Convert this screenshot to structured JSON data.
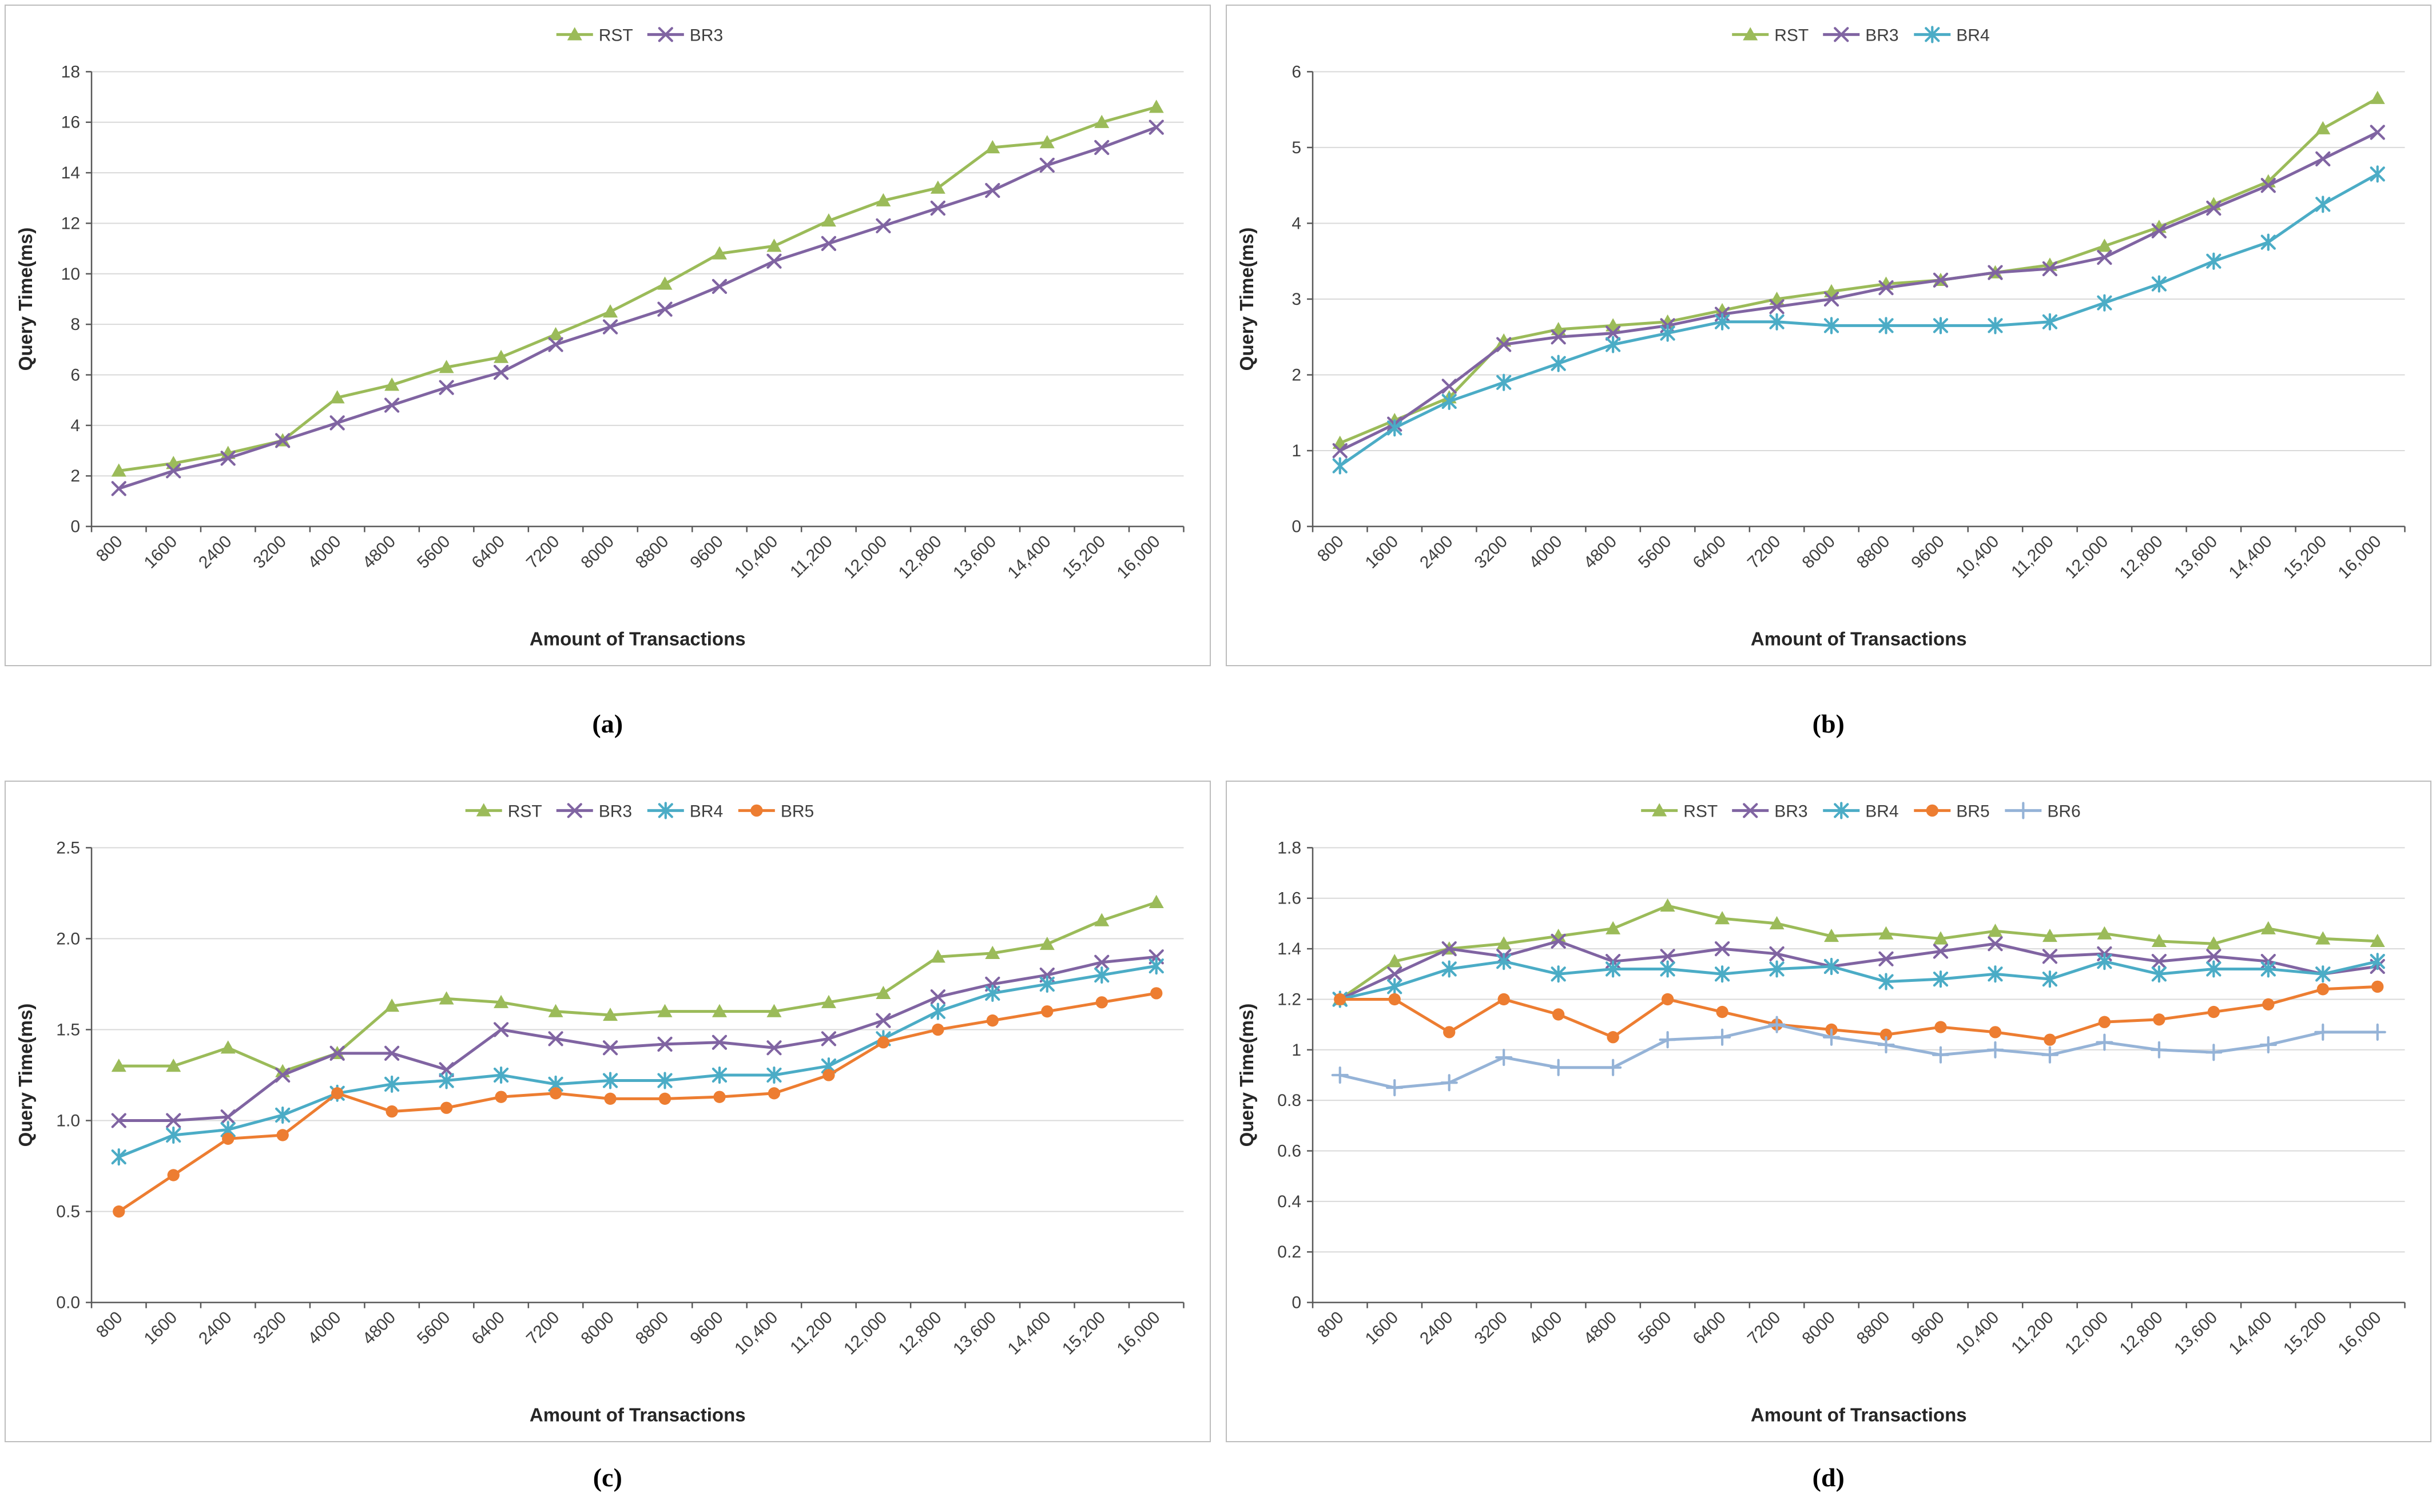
{
  "captions": [
    "(a)",
    "(b)",
    "(c)",
    "(d)"
  ],
  "palette": {
    "rst_green": "#9BBB59",
    "br3_purple": "#8064A2",
    "br4_teal": "#4BACC6",
    "br5_orange": "#ED7D31",
    "br6_blue": "#95B3D7",
    "gridline": "#d9d9d9",
    "axis": "#595959"
  },
  "chart_data": [
    {
      "type": "line",
      "title": "",
      "xlabel": "Amount of Transactions",
      "ylabel": "Query Time(ms)",
      "legend_position": "top",
      "grid": "horizontal",
      "ylim": [
        0,
        18
      ],
      "yticks": [
        0,
        2,
        4,
        6,
        8,
        10,
        12,
        14,
        16,
        18
      ],
      "ytick_labels": [
        "0",
        "2",
        "4",
        "6",
        "8",
        "10",
        "12",
        "14",
        "16",
        "18"
      ],
      "categories": [
        "800",
        "1600",
        "2400",
        "3200",
        "4000",
        "4800",
        "5600",
        "6400",
        "7200",
        "8000",
        "8800",
        "9600",
        "10,400",
        "11,200",
        "12,000",
        "12,800",
        "13,600",
        "14,400",
        "15,200",
        "16,000"
      ],
      "series": [
        {
          "name": "RST",
          "color": "#9BBB59",
          "marker": "triangle",
          "values": [
            2.2,
            2.5,
            2.9,
            3.4,
            5.1,
            5.6,
            6.3,
            6.7,
            7.6,
            8.5,
            9.6,
            10.8,
            11.1,
            12.1,
            12.9,
            13.4,
            15.0,
            15.2,
            16.0,
            16.6
          ]
        },
        {
          "name": "BR3",
          "color": "#8064A2",
          "marker": "x",
          "values": [
            1.5,
            2.2,
            2.7,
            3.4,
            4.1,
            4.8,
            5.5,
            6.1,
            7.2,
            7.9,
            8.6,
            9.5,
            10.5,
            11.2,
            11.9,
            12.6,
            13.3,
            14.3,
            15.0,
            15.8
          ]
        }
      ]
    },
    {
      "type": "line",
      "title": "",
      "xlabel": "Amount of Transactions",
      "ylabel": "Query Time(ms)",
      "legend_position": "top",
      "grid": "horizontal",
      "ylim": [
        0,
        6
      ],
      "yticks": [
        0,
        1,
        2,
        3,
        4,
        5,
        6
      ],
      "ytick_labels": [
        "0",
        "1",
        "2",
        "3",
        "4",
        "5",
        "6"
      ],
      "categories": [
        "800",
        "1600",
        "2400",
        "3200",
        "4000",
        "4800",
        "5600",
        "6400",
        "7200",
        "8000",
        "8800",
        "9600",
        "10,400",
        "11,200",
        "12,000",
        "12,800",
        "13,600",
        "14,400",
        "15,200",
        "16,000"
      ],
      "series": [
        {
          "name": "RST",
          "color": "#9BBB59",
          "marker": "triangle",
          "values": [
            1.1,
            1.4,
            1.7,
            2.45,
            2.6,
            2.65,
            2.7,
            2.85,
            3.0,
            3.1,
            3.2,
            3.25,
            3.35,
            3.45,
            3.7,
            3.95,
            4.25,
            4.55,
            5.25,
            5.65
          ]
        },
        {
          "name": "BR3",
          "color": "#8064A2",
          "marker": "x",
          "values": [
            1.0,
            1.35,
            1.85,
            2.4,
            2.5,
            2.55,
            2.65,
            2.8,
            2.9,
            3.0,
            3.15,
            3.25,
            3.35,
            3.4,
            3.55,
            3.9,
            4.2,
            4.5,
            4.85,
            5.2
          ]
        },
        {
          "name": "BR4",
          "color": "#4BACC6",
          "marker": "asterisk",
          "values": [
            0.8,
            1.3,
            1.65,
            1.9,
            2.15,
            2.4,
            2.55,
            2.7,
            2.7,
            2.65,
            2.65,
            2.65,
            2.65,
            2.7,
            2.95,
            3.2,
            3.5,
            3.75,
            4.25,
            4.65
          ]
        }
      ]
    },
    {
      "type": "line",
      "title": "",
      "xlabel": "Amount of Transactions",
      "ylabel": "Query Time(ms)",
      "legend_position": "top",
      "grid": "horizontal",
      "ylim": [
        0,
        2.5
      ],
      "yticks": [
        0,
        0.5,
        1.0,
        1.5,
        2.0,
        2.5
      ],
      "ytick_labels": [
        "0.0",
        "0.5",
        "1.0",
        "1.5",
        "2.0",
        "2.5"
      ],
      "categories": [
        "800",
        "1600",
        "2400",
        "3200",
        "4000",
        "4800",
        "5600",
        "6400",
        "7200",
        "8000",
        "8800",
        "9600",
        "10,400",
        "11,200",
        "12,000",
        "12,800",
        "13,600",
        "14,400",
        "15,200",
        "16,000"
      ],
      "series": [
        {
          "name": "RST",
          "color": "#9BBB59",
          "marker": "triangle",
          "values": [
            1.3,
            1.3,
            1.4,
            1.27,
            1.37,
            1.63,
            1.67,
            1.65,
            1.6,
            1.58,
            1.6,
            1.6,
            1.6,
            1.65,
            1.7,
            1.9,
            1.92,
            1.97,
            2.1,
            2.2
          ]
        },
        {
          "name": "BR3",
          "color": "#8064A2",
          "marker": "x",
          "values": [
            1.0,
            1.0,
            1.02,
            1.25,
            1.37,
            1.37,
            1.28,
            1.5,
            1.45,
            1.4,
            1.42,
            1.43,
            1.4,
            1.45,
            1.55,
            1.68,
            1.75,
            1.8,
            1.87,
            1.9
          ]
        },
        {
          "name": "BR4",
          "color": "#4BACC6",
          "marker": "asterisk",
          "values": [
            0.8,
            0.92,
            0.95,
            1.03,
            1.15,
            1.2,
            1.22,
            1.25,
            1.2,
            1.22,
            1.22,
            1.25,
            1.25,
            1.3,
            1.45,
            1.6,
            1.7,
            1.75,
            1.8,
            1.85
          ]
        },
        {
          "name": "BR5",
          "color": "#ED7D31",
          "marker": "circle",
          "values": [
            0.5,
            0.7,
            0.9,
            0.92,
            1.15,
            1.05,
            1.07,
            1.13,
            1.15,
            1.12,
            1.12,
            1.13,
            1.15,
            1.25,
            1.43,
            1.5,
            1.55,
            1.6,
            1.65,
            1.7
          ]
        }
      ]
    },
    {
      "type": "line",
      "title": "",
      "xlabel": "Amount of Transactions",
      "ylabel": "Query Time(ms)",
      "legend_position": "top",
      "grid": "horizontal",
      "ylim": [
        0,
        1.8
      ],
      "yticks": [
        0,
        0.2,
        0.4,
        0.6,
        0.8,
        1.0,
        1.2,
        1.4,
        1.6,
        1.8
      ],
      "ytick_labels": [
        "0",
        "0.2",
        "0.4",
        "0.6",
        "0.8",
        "1",
        "1.2",
        "1.4",
        "1.6",
        "1.8"
      ],
      "categories": [
        "800",
        "1600",
        "2400",
        "3200",
        "4000",
        "4800",
        "5600",
        "6400",
        "7200",
        "8000",
        "8800",
        "9600",
        "10,400",
        "11,200",
        "12,000",
        "12,800",
        "13,600",
        "14,400",
        "15,200",
        "16,000"
      ],
      "series": [
        {
          "name": "RST",
          "color": "#9BBB59",
          "marker": "triangle",
          "values": [
            1.2,
            1.35,
            1.4,
            1.42,
            1.45,
            1.48,
            1.57,
            1.52,
            1.5,
            1.45,
            1.46,
            1.44,
            1.47,
            1.45,
            1.46,
            1.43,
            1.42,
            1.48,
            1.44,
            1.43
          ]
        },
        {
          "name": "BR3",
          "color": "#8064A2",
          "marker": "x",
          "values": [
            1.2,
            1.3,
            1.4,
            1.37,
            1.43,
            1.35,
            1.37,
            1.4,
            1.38,
            1.33,
            1.36,
            1.39,
            1.42,
            1.37,
            1.38,
            1.35,
            1.37,
            1.35,
            1.3,
            1.33
          ]
        },
        {
          "name": "BR4",
          "color": "#4BACC6",
          "marker": "asterisk",
          "values": [
            1.2,
            1.25,
            1.32,
            1.35,
            1.3,
            1.32,
            1.32,
            1.3,
            1.32,
            1.33,
            1.27,
            1.28,
            1.3,
            1.28,
            1.35,
            1.3,
            1.32,
            1.32,
            1.3,
            1.35
          ]
        },
        {
          "name": "BR5",
          "color": "#ED7D31",
          "marker": "circle",
          "values": [
            1.2,
            1.2,
            1.07,
            1.2,
            1.14,
            1.05,
            1.2,
            1.15,
            1.1,
            1.08,
            1.06,
            1.09,
            1.07,
            1.04,
            1.11,
            1.12,
            1.15,
            1.18,
            1.24,
            1.25
          ]
        },
        {
          "name": "BR6",
          "color": "#95B3D7",
          "marker": "plus",
          "values": [
            0.9,
            0.85,
            0.87,
            0.97,
            0.93,
            0.93,
            1.04,
            1.05,
            1.1,
            1.05,
            1.02,
            0.98,
            1.0,
            0.98,
            1.03,
            1.0,
            0.99,
            1.02,
            1.07,
            1.07
          ]
        }
      ]
    }
  ]
}
